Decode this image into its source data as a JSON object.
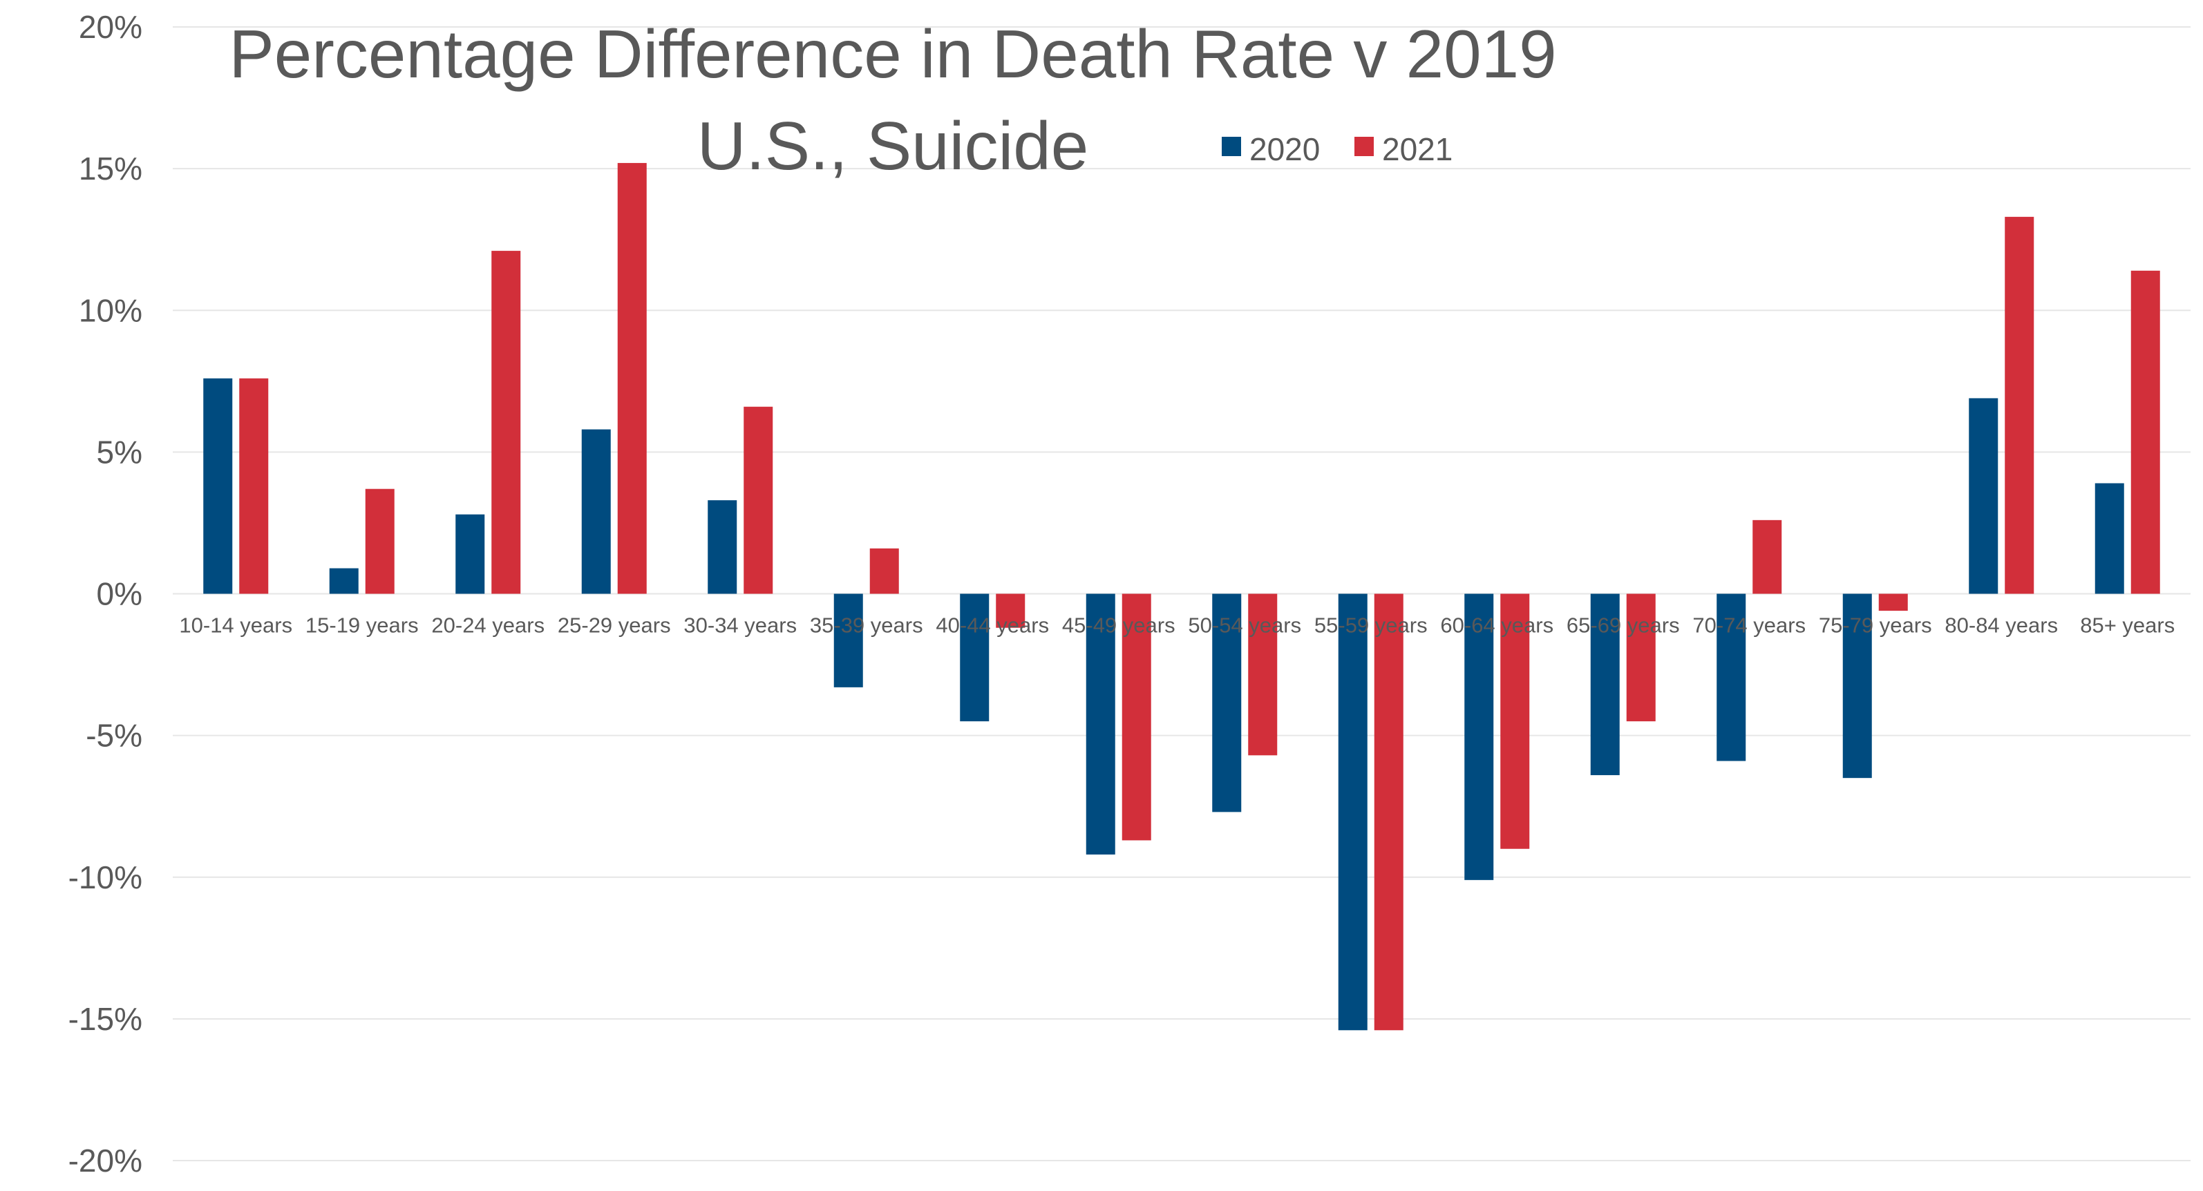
{
  "chart_data": {
    "type": "bar",
    "title_line1": "Percentage Difference in Death Rate v 2019",
    "title_line2": "U.S., Suicide",
    "categories": [
      "10-14 years",
      "15-19 years",
      "20-24 years",
      "25-29 years",
      "30-34 years",
      "35-39 years",
      "40-44 years",
      "45-49 years",
      "50-54 years",
      "55-59 years",
      "60-64 years",
      "65-69 years",
      "70-74 years",
      "75-79 years",
      "80-84 years",
      "85+ years"
    ],
    "series": [
      {
        "name": "2020",
        "color": "#004b7f",
        "values": [
          7.6,
          0.9,
          2.8,
          5.8,
          3.3,
          -3.3,
          -4.5,
          -9.2,
          -7.7,
          -15.4,
          -10.1,
          -6.4,
          -5.9,
          -6.5,
          6.9,
          3.9
        ]
      },
      {
        "name": "2021",
        "color": "#d22f3a",
        "values": [
          7.6,
          3.7,
          12.1,
          15.2,
          6.6,
          1.6,
          -1.2,
          -8.7,
          -5.7,
          -15.4,
          -9.0,
          -4.5,
          2.6,
          -0.6,
          13.3,
          11.4
        ]
      }
    ],
    "ylim": [
      -20,
      20
    ],
    "yticks": [
      {
        "value": 20,
        "label": "20%"
      },
      {
        "value": 15,
        "label": "15%"
      },
      {
        "value": 10,
        "label": "10%"
      },
      {
        "value": 5,
        "label": "5%"
      },
      {
        "value": 0,
        "label": "0%"
      },
      {
        "value": -5,
        "label": "-5%"
      },
      {
        "value": -10,
        "label": "-10%"
      },
      {
        "value": -15,
        "label": "-15%"
      },
      {
        "value": -20,
        "label": "-20%"
      }
    ],
    "grid": true,
    "legend_position": "top-center"
  }
}
